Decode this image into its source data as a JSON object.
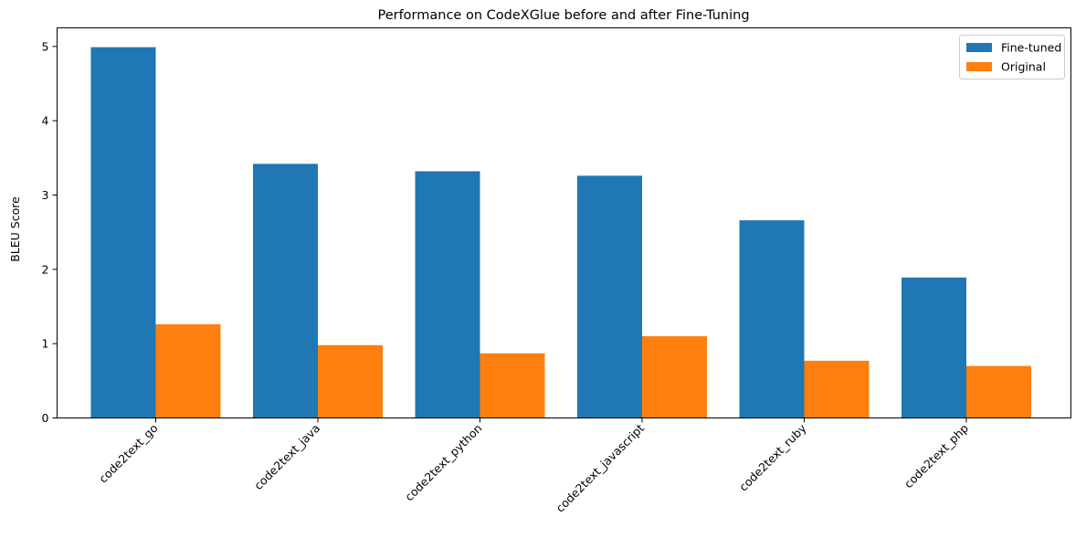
{
  "chart_data": {
    "type": "bar",
    "title": "Performance on CodeXGlue before and after Fine-Tuning",
    "xlabel": "",
    "ylabel": "BLEU Score",
    "categories": [
      "code2text_go",
      "code2text_java",
      "code2text_python",
      "code2text_javascript",
      "code2text_ruby",
      "code2text_php"
    ],
    "series": [
      {
        "name": "Fine-tuned",
        "color": "#1f77b4",
        "values": [
          4.99,
          3.42,
          3.32,
          3.26,
          2.66,
          1.89
        ]
      },
      {
        "name": "Original",
        "color": "#ff7f0e",
        "values": [
          1.26,
          0.98,
          0.87,
          1.1,
          0.77,
          0.7
        ]
      }
    ],
    "ylim": [
      0,
      5.25
    ],
    "yticks": [
      "0",
      "1",
      "2",
      "3",
      "4",
      "5"
    ],
    "grid": false,
    "legend_position": "top-right"
  }
}
